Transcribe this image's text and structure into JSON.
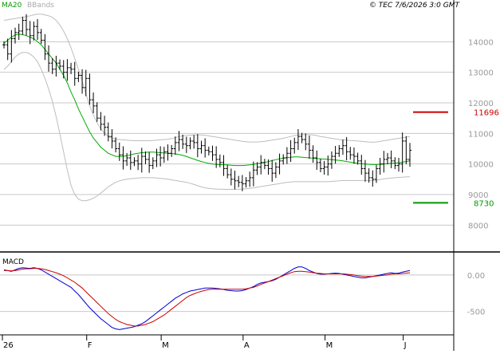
{
  "header": {
    "legend_ma": "MA20",
    "legend_bb": "BBands",
    "source": "© TEC 7/6/2026 3:0 GMT"
  },
  "colors": {
    "background": "#ffffff",
    "grid": "#c8c8c8",
    "price_bars": "#000000",
    "ma20": "#00aa00",
    "bbands": "#bdbdbd",
    "resistance": "#cc0000",
    "support": "#009900",
    "macd": "#0000cc",
    "signal": "#cc0000"
  },
  "chart_data": [
    {
      "type": "ohlc",
      "name": "price",
      "x_labels": [
        "26",
        "F",
        "M",
        "A",
        "M",
        "J"
      ],
      "y_ticks": [
        "14000",
        "13000",
        "12000",
        "11000",
        "10000",
        "9000",
        "8000"
      ],
      "ylim": [
        7200,
        15000
      ],
      "grid": true,
      "levels": [
        {
          "name": "resistance",
          "value": 11696,
          "label": "11696"
        },
        {
          "name": "support",
          "value": 8730,
          "label": "8730"
        }
      ],
      "n_days": 110,
      "close": [
        13900,
        13600,
        14100,
        14300,
        14350,
        14700,
        14400,
        14200,
        14500,
        14300,
        14050,
        13600,
        13300,
        13100,
        13300,
        13200,
        13000,
        13150,
        13100,
        12800,
        12900,
        12500,
        12800,
        12100,
        11900,
        11500,
        11300,
        11200,
        10900,
        10750,
        10500,
        10300,
        10100,
        10200,
        10050,
        10100,
        10000,
        10250,
        10150,
        9950,
        10100,
        10300,
        10200,
        10400,
        10350,
        10500,
        10700,
        10800,
        10650,
        10600,
        10750,
        10700,
        10500,
        10600,
        10450,
        10400,
        10300,
        10150,
        10050,
        9850,
        9650,
        9500,
        9450,
        9400,
        9350,
        9450,
        9550,
        9800,
        9900,
        10050,
        9950,
        9850,
        9700,
        9900,
        10100,
        10200,
        10350,
        10500,
        10700,
        10900,
        10800,
        10650,
        10450,
        10200,
        10050,
        9850,
        9900,
        10000,
        10250,
        10350,
        10500,
        10600,
        10400,
        10300,
        10250,
        10100,
        9850,
        9700,
        9550,
        9500,
        9850,
        10000,
        10150,
        10200,
        10100,
        9950,
        10000,
        10750,
        10150,
        10450
      ],
      "ma20": [
        13950,
        14050,
        14150,
        14220,
        14250,
        14230,
        14200,
        14150,
        14100,
        14000,
        13900,
        13750,
        13600,
        13450,
        13300,
        13100,
        12900,
        12650,
        12350,
        12100,
        11800,
        11550,
        11300,
        11050,
        10850,
        10700,
        10550,
        10450,
        10350,
        10300,
        10250,
        10250,
        10250,
        10270,
        10300,
        10330,
        10350,
        10370,
        10380,
        10390,
        10390,
        10380,
        10370,
        10360,
        10350,
        10340,
        10330,
        10310,
        10280,
        10250,
        10200,
        10160,
        10120,
        10080,
        10050,
        10020,
        10000,
        9990,
        9980,
        9970,
        9970,
        9960,
        9950,
        9950,
        9950,
        9960,
        9970,
        9990,
        10010,
        10030,
        10050,
        10080,
        10110,
        10140,
        10170,
        10190,
        10210,
        10220,
        10230,
        10230,
        10220,
        10210,
        10200,
        10190,
        10180,
        10170,
        10160,
        10150,
        10140,
        10130,
        10120,
        10100,
        10080,
        10060,
        10040,
        10020,
        10010,
        10000,
        9990,
        9980,
        9980,
        9990,
        10000,
        10010,
        10020,
        10030,
        10040,
        10060,
        10080,
        10100
      ],
      "bb_upper": [
        14700,
        14720,
        14740,
        14760,
        14780,
        14800,
        14820,
        14850,
        14880,
        14900,
        14900,
        14880,
        14850,
        14800,
        14700,
        14550,
        14350,
        14100,
        13800,
        13450,
        13100,
        12700,
        12300,
        11900,
        11600,
        11350,
        11150,
        11000,
        10900,
        10850,
        10820,
        10800,
        10790,
        10780,
        10770,
        10760,
        10760,
        10760,
        10760,
        10760,
        10770,
        10780,
        10790,
        10800,
        10810,
        10830,
        10860,
        10900,
        10920,
        10930,
        10940,
        10950,
        10950,
        10950,
        10940,
        10920,
        10900,
        10880,
        10860,
        10840,
        10820,
        10800,
        10780,
        10760,
        10740,
        10730,
        10720,
        10720,
        10720,
        10730,
        10740,
        10760,
        10780,
        10800,
        10820,
        10840,
        10870,
        10900,
        10930,
        10950,
        10960,
        10960,
        10960,
        10950,
        10930,
        10900,
        10880,
        10860,
        10840,
        10820,
        10800,
        10790,
        10780,
        10770,
        10760,
        10750,
        10740,
        10730,
        10720,
        10710,
        10720,
        10740,
        10760,
        10780,
        10800,
        10820,
        10840,
        10860,
        10880,
        10900
      ],
      "bb_lower": [
        13100,
        13200,
        13350,
        13500,
        13600,
        13650,
        13650,
        13600,
        13500,
        13350,
        13100,
        12800,
        12450,
        12050,
        11550,
        11000,
        10400,
        9800,
        9300,
        9000,
        8850,
        8800,
        8800,
        8830,
        8880,
        8950,
        9050,
        9150,
        9250,
        9330,
        9400,
        9450,
        9480,
        9500,
        9520,
        9530,
        9540,
        9550,
        9550,
        9550,
        9550,
        9540,
        9530,
        9520,
        9500,
        9480,
        9460,
        9440,
        9420,
        9400,
        9370,
        9330,
        9290,
        9250,
        9220,
        9200,
        9190,
        9180,
        9175,
        9170,
        9170,
        9170,
        9170,
        9175,
        9180,
        9190,
        9200,
        9220,
        9240,
        9260,
        9280,
        9300,
        9320,
        9340,
        9360,
        9380,
        9400,
        9410,
        9420,
        9420,
        9420,
        9420,
        9420,
        9420,
        9420,
        9420,
        9420,
        9420,
        9430,
        9440,
        9450,
        9460,
        9460,
        9460,
        9460,
        9460,
        9460,
        9460,
        9460,
        9460,
        9470,
        9490,
        9510,
        9530,
        9540,
        9550,
        9560,
        9570,
        9580,
        9580
      ]
    },
    {
      "type": "line",
      "name": "MACD",
      "title": "MACD",
      "y_ticks": [
        "0.00",
        "-500"
      ],
      "ylim": [
        -800,
        250
      ],
      "series": [
        {
          "name": "macd",
          "values": [
            70,
            60,
            50,
            70,
            90,
            100,
            95,
            90,
            100,
            90,
            70,
            40,
            10,
            -20,
            -50,
            -80,
            -110,
            -140,
            -170,
            -220,
            -270,
            -330,
            -390,
            -450,
            -500,
            -550,
            -600,
            -640,
            -680,
            -720,
            -740,
            -750,
            -740,
            -730,
            -720,
            -710,
            -690,
            -670,
            -640,
            -600,
            -560,
            -520,
            -480,
            -440,
            -400,
            -360,
            -320,
            -290,
            -260,
            -240,
            -220,
            -210,
            -200,
            -190,
            -180,
            -180,
            -180,
            -185,
            -190,
            -200,
            -210,
            -215,
            -220,
            -220,
            -215,
            -200,
            -180,
            -160,
            -130,
            -110,
            -100,
            -90,
            -80,
            -60,
            -30,
            0,
            30,
            60,
            90,
            110,
            110,
            90,
            60,
            40,
            20,
            10,
            10,
            15,
            20,
            25,
            20,
            10,
            0,
            -10,
            -20,
            -30,
            -40,
            -40,
            -30,
            -20,
            -10,
            0,
            10,
            20,
            30,
            20,
            25,
            40,
            50,
            60
          ]
        },
        {
          "name": "signal",
          "values": [
            60,
            60,
            55,
            60,
            70,
            80,
            85,
            85,
            90,
            90,
            85,
            75,
            60,
            45,
            30,
            10,
            -10,
            -40,
            -70,
            -100,
            -140,
            -180,
            -230,
            -280,
            -330,
            -380,
            -430,
            -480,
            -530,
            -570,
            -610,
            -640,
            -660,
            -680,
            -690,
            -700,
            -700,
            -690,
            -680,
            -660,
            -640,
            -610,
            -580,
            -550,
            -510,
            -470,
            -430,
            -390,
            -350,
            -310,
            -280,
            -260,
            -240,
            -225,
            -210,
            -200,
            -195,
            -195,
            -195,
            -195,
            -195,
            -195,
            -195,
            -195,
            -195,
            -190,
            -180,
            -170,
            -150,
            -130,
            -110,
            -90,
            -70,
            -50,
            -30,
            -10,
            10,
            30,
            45,
            50,
            50,
            45,
            40,
            30,
            25,
            20,
            15,
            15,
            15,
            15,
            15,
            15,
            10,
            5,
            0,
            -10,
            -15,
            -20,
            -20,
            -20,
            -15,
            -10,
            -5,
            0,
            10,
            15,
            15,
            20,
            25,
            30
          ]
        }
      ]
    }
  ]
}
